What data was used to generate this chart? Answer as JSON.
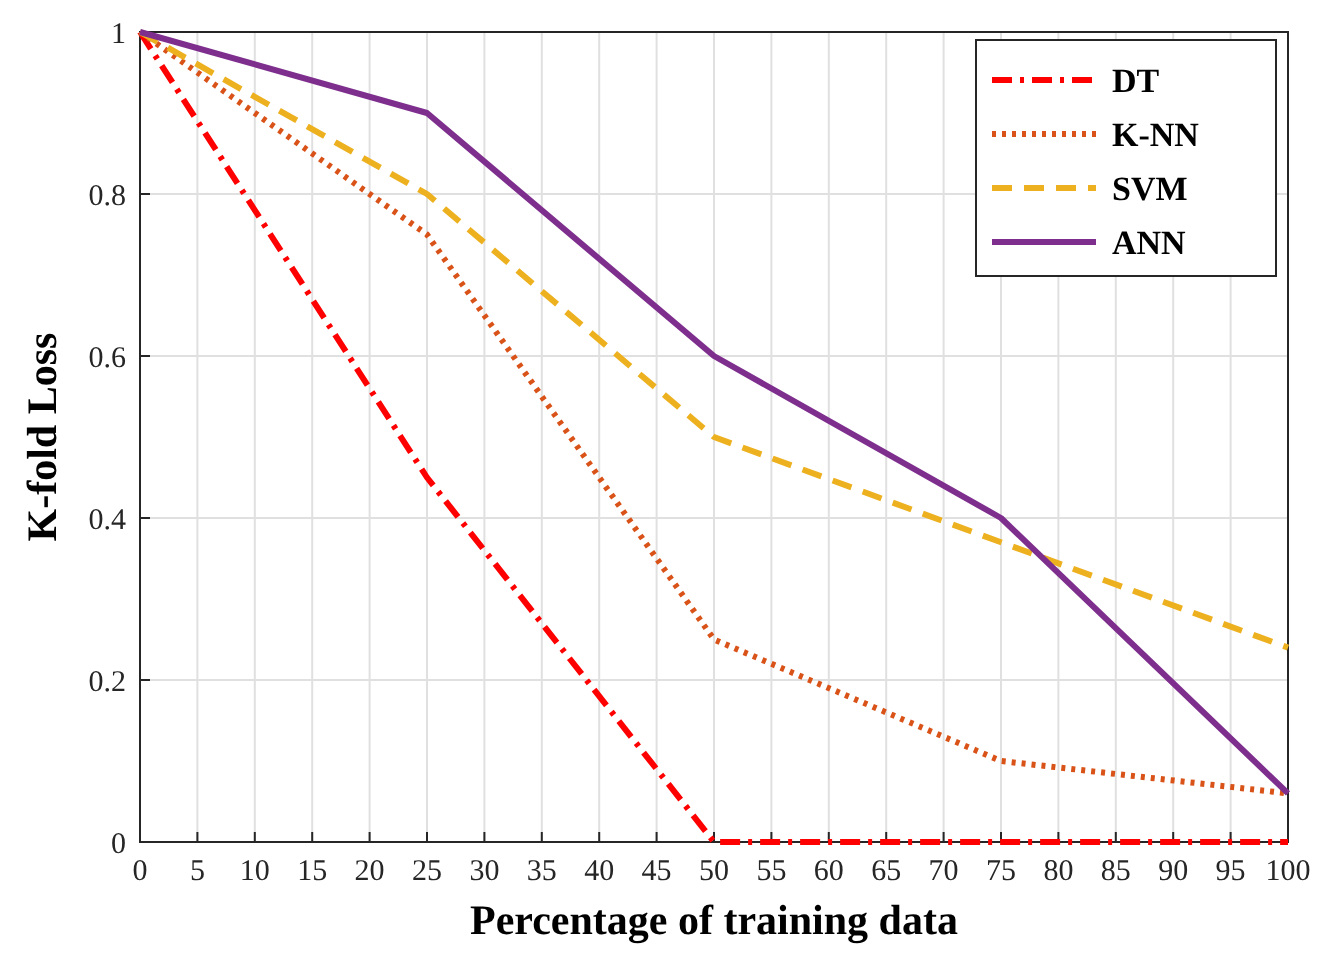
{
  "chart_data": {
    "type": "line",
    "xlabel": "Percentage of training data",
    "ylabel": "K-fold Loss",
    "x": [
      0,
      25,
      50,
      75,
      100
    ],
    "series": [
      {
        "name": "DT",
        "color": "#ff0000",
        "line_style": "dashdot",
        "values": [
          1,
          0.45,
          0,
          0,
          0
        ]
      },
      {
        "name": "K-NN",
        "color": "#d95319",
        "line_style": "dotted",
        "values": [
          1,
          0.75,
          0.25,
          0.1,
          0.06
        ]
      },
      {
        "name": "SVM",
        "color": "#edb120",
        "line_style": "dashed",
        "values": [
          1,
          0.8,
          0.5,
          0.37,
          0.24
        ]
      },
      {
        "name": "ANN",
        "color": "#7e2f8e",
        "line_style": "solid",
        "values": [
          1,
          0.9,
          0.6,
          0.4,
          0.06
        ]
      }
    ],
    "xlim": [
      0,
      100
    ],
    "xticks": [
      0,
      5,
      10,
      15,
      20,
      25,
      30,
      35,
      40,
      45,
      50,
      55,
      60,
      65,
      70,
      75,
      80,
      85,
      90,
      95,
      100
    ],
    "ylim": [
      0,
      1
    ],
    "yticks": [
      0,
      0.2,
      0.4,
      0.6,
      0.8,
      1
    ],
    "grid": true,
    "legend": "top right",
    "marker": "none"
  }
}
